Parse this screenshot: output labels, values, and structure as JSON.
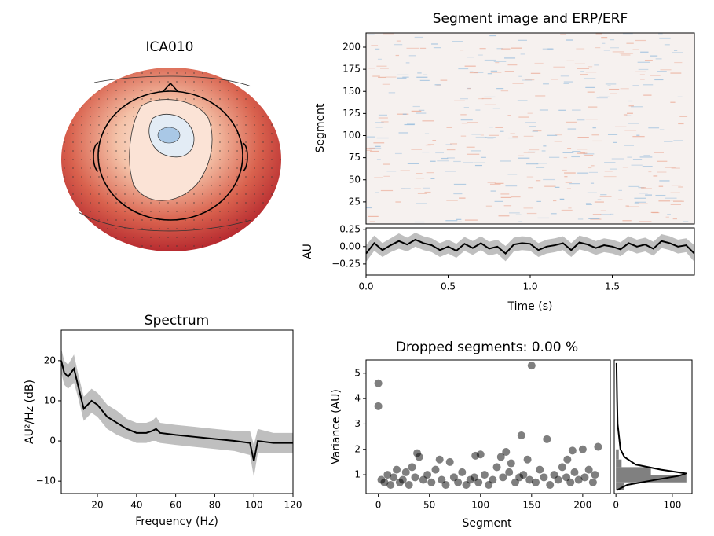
{
  "chart_data": [
    {
      "type": "topomap",
      "title": "ICA010"
    },
    {
      "type": "image",
      "title": "Segment image and ERP/ERF",
      "y_label": "Segment",
      "ylim": [
        0,
        216
      ],
      "yticks": [
        25,
        50,
        75,
        100,
        125,
        150,
        175,
        200
      ]
    },
    {
      "type": "line",
      "x_label": "Time (s)",
      "y_label": "AU",
      "color": "#000000",
      "band_color": "#a9a9a9",
      "xlim": [
        0,
        2.0
      ],
      "xticks": [
        {
          "value": 0,
          "label": "0.0"
        },
        {
          "value": 0.5,
          "label": "0.5"
        },
        {
          "value": 1.0,
          "label": "1.0"
        },
        {
          "value": 1.5,
          "label": "1.5"
        }
      ],
      "ylim": [
        -0.41,
        0.27
      ],
      "yticks": [
        {
          "value": -0.25,
          "label": "−0.25"
        },
        {
          "value": 0,
          "label": "0.00"
        },
        {
          "value": 0.25,
          "label": "0.25"
        }
      ],
      "x": [
        0,
        0.05,
        0.1,
        0.15,
        0.2,
        0.25,
        0.3,
        0.35,
        0.4,
        0.45,
        0.5,
        0.55,
        0.6,
        0.65,
        0.7,
        0.75,
        0.8,
        0.85,
        0.9,
        0.95,
        1.0,
        1.05,
        1.1,
        1.15,
        1.2,
        1.25,
        1.3,
        1.35,
        1.4,
        1.45,
        1.5,
        1.55,
        1.6,
        1.65,
        1.7,
        1.75,
        1.8,
        1.85,
        1.9,
        1.95,
        2.0
      ],
      "values": [
        -0.1,
        0.05,
        -0.05,
        0.02,
        0.08,
        0.03,
        0.1,
        0.05,
        0.02,
        -0.05,
        0.0,
        -0.06,
        0.04,
        -0.02,
        0.05,
        -0.03,
        0.0,
        -0.1,
        0.03,
        0.05,
        0.04,
        -0.05,
        0.0,
        0.02,
        0.05,
        -0.05,
        0.06,
        0.03,
        -0.02,
        0.02,
        0.0,
        -0.04,
        0.05,
        0.0,
        0.03,
        -0.03,
        0.08,
        0.05,
        0.0,
        0.02,
        -0.1
      ],
      "errors": [
        0.12,
        0.11,
        0.1,
        0.1,
        0.11,
        0.1,
        0.1,
        0.1,
        0.1,
        0.1,
        0.1,
        0.1,
        0.1,
        0.1,
        0.1,
        0.1,
        0.1,
        0.11,
        0.1,
        0.1,
        0.1,
        0.1,
        0.1,
        0.1,
        0.1,
        0.1,
        0.1,
        0.1,
        0.1,
        0.1,
        0.1,
        0.1,
        0.1,
        0.1,
        0.1,
        0.1,
        0.1,
        0.1,
        0.1,
        0.1,
        0.12
      ]
    },
    {
      "type": "line",
      "title": "Spectrum",
      "x_label": "Frequency (Hz)",
      "y_label": "AU²/Hz (dB)",
      "color": "#000000",
      "band_color": "#a9a9a9",
      "xlim": [
        1.5,
        120
      ],
      "xticks": [
        20,
        40,
        60,
        80,
        100,
        120
      ],
      "ylim": [
        -13.1,
        27.6
      ],
      "yticks": [
        {
          "value": -10,
          "label": "−10"
        },
        0,
        10,
        20
      ],
      "x": [
        1.5,
        3,
        5,
        8,
        10,
        13,
        17,
        20,
        25,
        30,
        35,
        40,
        45,
        48,
        50,
        52,
        60,
        70,
        80,
        90,
        98,
        100,
        102,
        110,
        120
      ],
      "values": [
        20,
        17,
        16,
        18,
        14,
        8,
        10,
        9,
        6,
        4.5,
        3,
        2,
        2,
        2.5,
        3,
        2,
        1.5,
        1,
        0.5,
        0,
        -0.5,
        -5,
        0,
        -0.5,
        -0.5
      ],
      "errors": [
        3,
        3,
        3,
        3.5,
        3,
        3,
        3,
        3,
        3,
        3,
        2.5,
        2.5,
        2.5,
        2.5,
        3,
        2.5,
        2.5,
        2.5,
        2.5,
        2.5,
        3,
        4,
        3,
        2.5,
        2.5
      ]
    },
    {
      "type": "scatter",
      "title": "Dropped segments: 0.00 %",
      "x_label": "Segment",
      "y_label": "Variance (AU)",
      "color": "#000000",
      "xlim": [
        -12,
        227
      ],
      "xticks": [
        0,
        50,
        100,
        150,
        200
      ],
      "ylim": [
        0.26,
        5.52
      ],
      "yticks": [
        1,
        2,
        3,
        4,
        5
      ],
      "x": [
        0,
        0,
        3,
        6,
        9,
        12,
        15,
        18,
        21,
        24,
        27,
        30,
        33,
        36,
        38,
        40,
        44,
        48,
        52,
        56,
        60,
        62,
        66,
        70,
        74,
        78,
        82,
        86,
        90,
        94,
        95,
        98,
        100,
        104,
        108,
        112,
        116,
        120,
        122,
        125,
        128,
        130,
        134,
        138,
        140,
        142,
        146,
        148,
        150,
        154,
        158,
        162,
        165,
        168,
        172,
        176,
        180,
        184,
        185,
        188,
        190,
        192,
        196,
        200,
        202,
        206,
        210,
        212,
        215
      ],
      "values": [
        4.6,
        3.7,
        0.8,
        0.7,
        1.0,
        0.6,
        0.9,
        1.2,
        0.7,
        0.8,
        1.1,
        0.6,
        1.3,
        0.9,
        1.85,
        1.7,
        0.8,
        1.0,
        0.7,
        1.2,
        1.6,
        0.8,
        0.6,
        1.5,
        0.9,
        0.7,
        1.1,
        0.6,
        0.8,
        0.9,
        1.75,
        0.7,
        1.8,
        1.0,
        0.6,
        0.8,
        1.3,
        1.7,
        0.9,
        1.9,
        1.1,
        1.45,
        0.7,
        0.9,
        2.55,
        1.0,
        1.6,
        0.8,
        5.3,
        0.7,
        1.2,
        0.9,
        2.4,
        0.6,
        1.0,
        0.8,
        1.3,
        0.9,
        1.6,
        0.7,
        1.95,
        1.1,
        0.8,
        2.0,
        0.9,
        1.2,
        0.7,
        1.0,
        2.1
      ]
    },
    {
      "type": "histogram",
      "orientation": "horizontal",
      "color": "#808080",
      "xlim": [
        -3,
        135
      ],
      "xticks": [
        0,
        100
      ],
      "ylim": [
        0.26,
        5.52
      ],
      "bins": [
        0.4,
        0.7,
        1.0,
        1.3,
        1.6,
        2.0
      ],
      "counts": [
        15,
        125,
        62,
        10,
        5
      ],
      "kde": {
        "variance": [
          0.4,
          0.6,
          0.8,
          0.95,
          1.05,
          1.2,
          1.4,
          1.7,
          2.0,
          3,
          4,
          5.4
        ],
        "density": [
          2,
          20,
          70,
          110,
          125,
          80,
          35,
          15,
          8,
          3,
          2,
          1
        ]
      }
    }
  ]
}
